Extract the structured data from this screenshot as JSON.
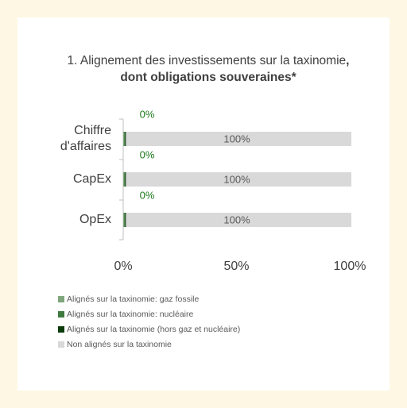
{
  "chart_data": {
    "type": "stacked_barh",
    "title": "1. Alignement des investissements sur la taxinomie",
    "title_bold": ", dont obligations souveraines*",
    "categories": [
      "Chiffre d'affaires",
      "CapEx",
      "OpEx"
    ],
    "series": [
      {
        "name": "Alignés sur la taxinomie: gaz fossile",
        "color": "#7fa67c",
        "values": [
          0.4,
          0.4,
          0.4
        ]
      },
      {
        "name": "Alignés sur la taxinomie: nucléaire",
        "color": "#3f7a3f",
        "values": [
          0.4,
          0.4,
          0.4
        ]
      },
      {
        "name": "Alignés sur la taxinomie (hors gaz et nucléaire)",
        "color": "#0b3b0b",
        "values": [
          0.4,
          0.4,
          0.4
        ],
        "value_labels": [
          "0%",
          "0%",
          "0%"
        ]
      },
      {
        "name": "Non alignés sur la taxinomie",
        "color": "#d9d9d9",
        "values": [
          99.5,
          99.5,
          99.5
        ],
        "value_labels": [
          "100%",
          "100%",
          "100%"
        ]
      }
    ],
    "xlim": [
      0,
      100
    ],
    "xticks": [
      {
        "value": 0,
        "label": "0%"
      },
      {
        "value": 50,
        "label": "50%"
      },
      {
        "value": 100,
        "label": "100%"
      }
    ],
    "grid": false
  }
}
